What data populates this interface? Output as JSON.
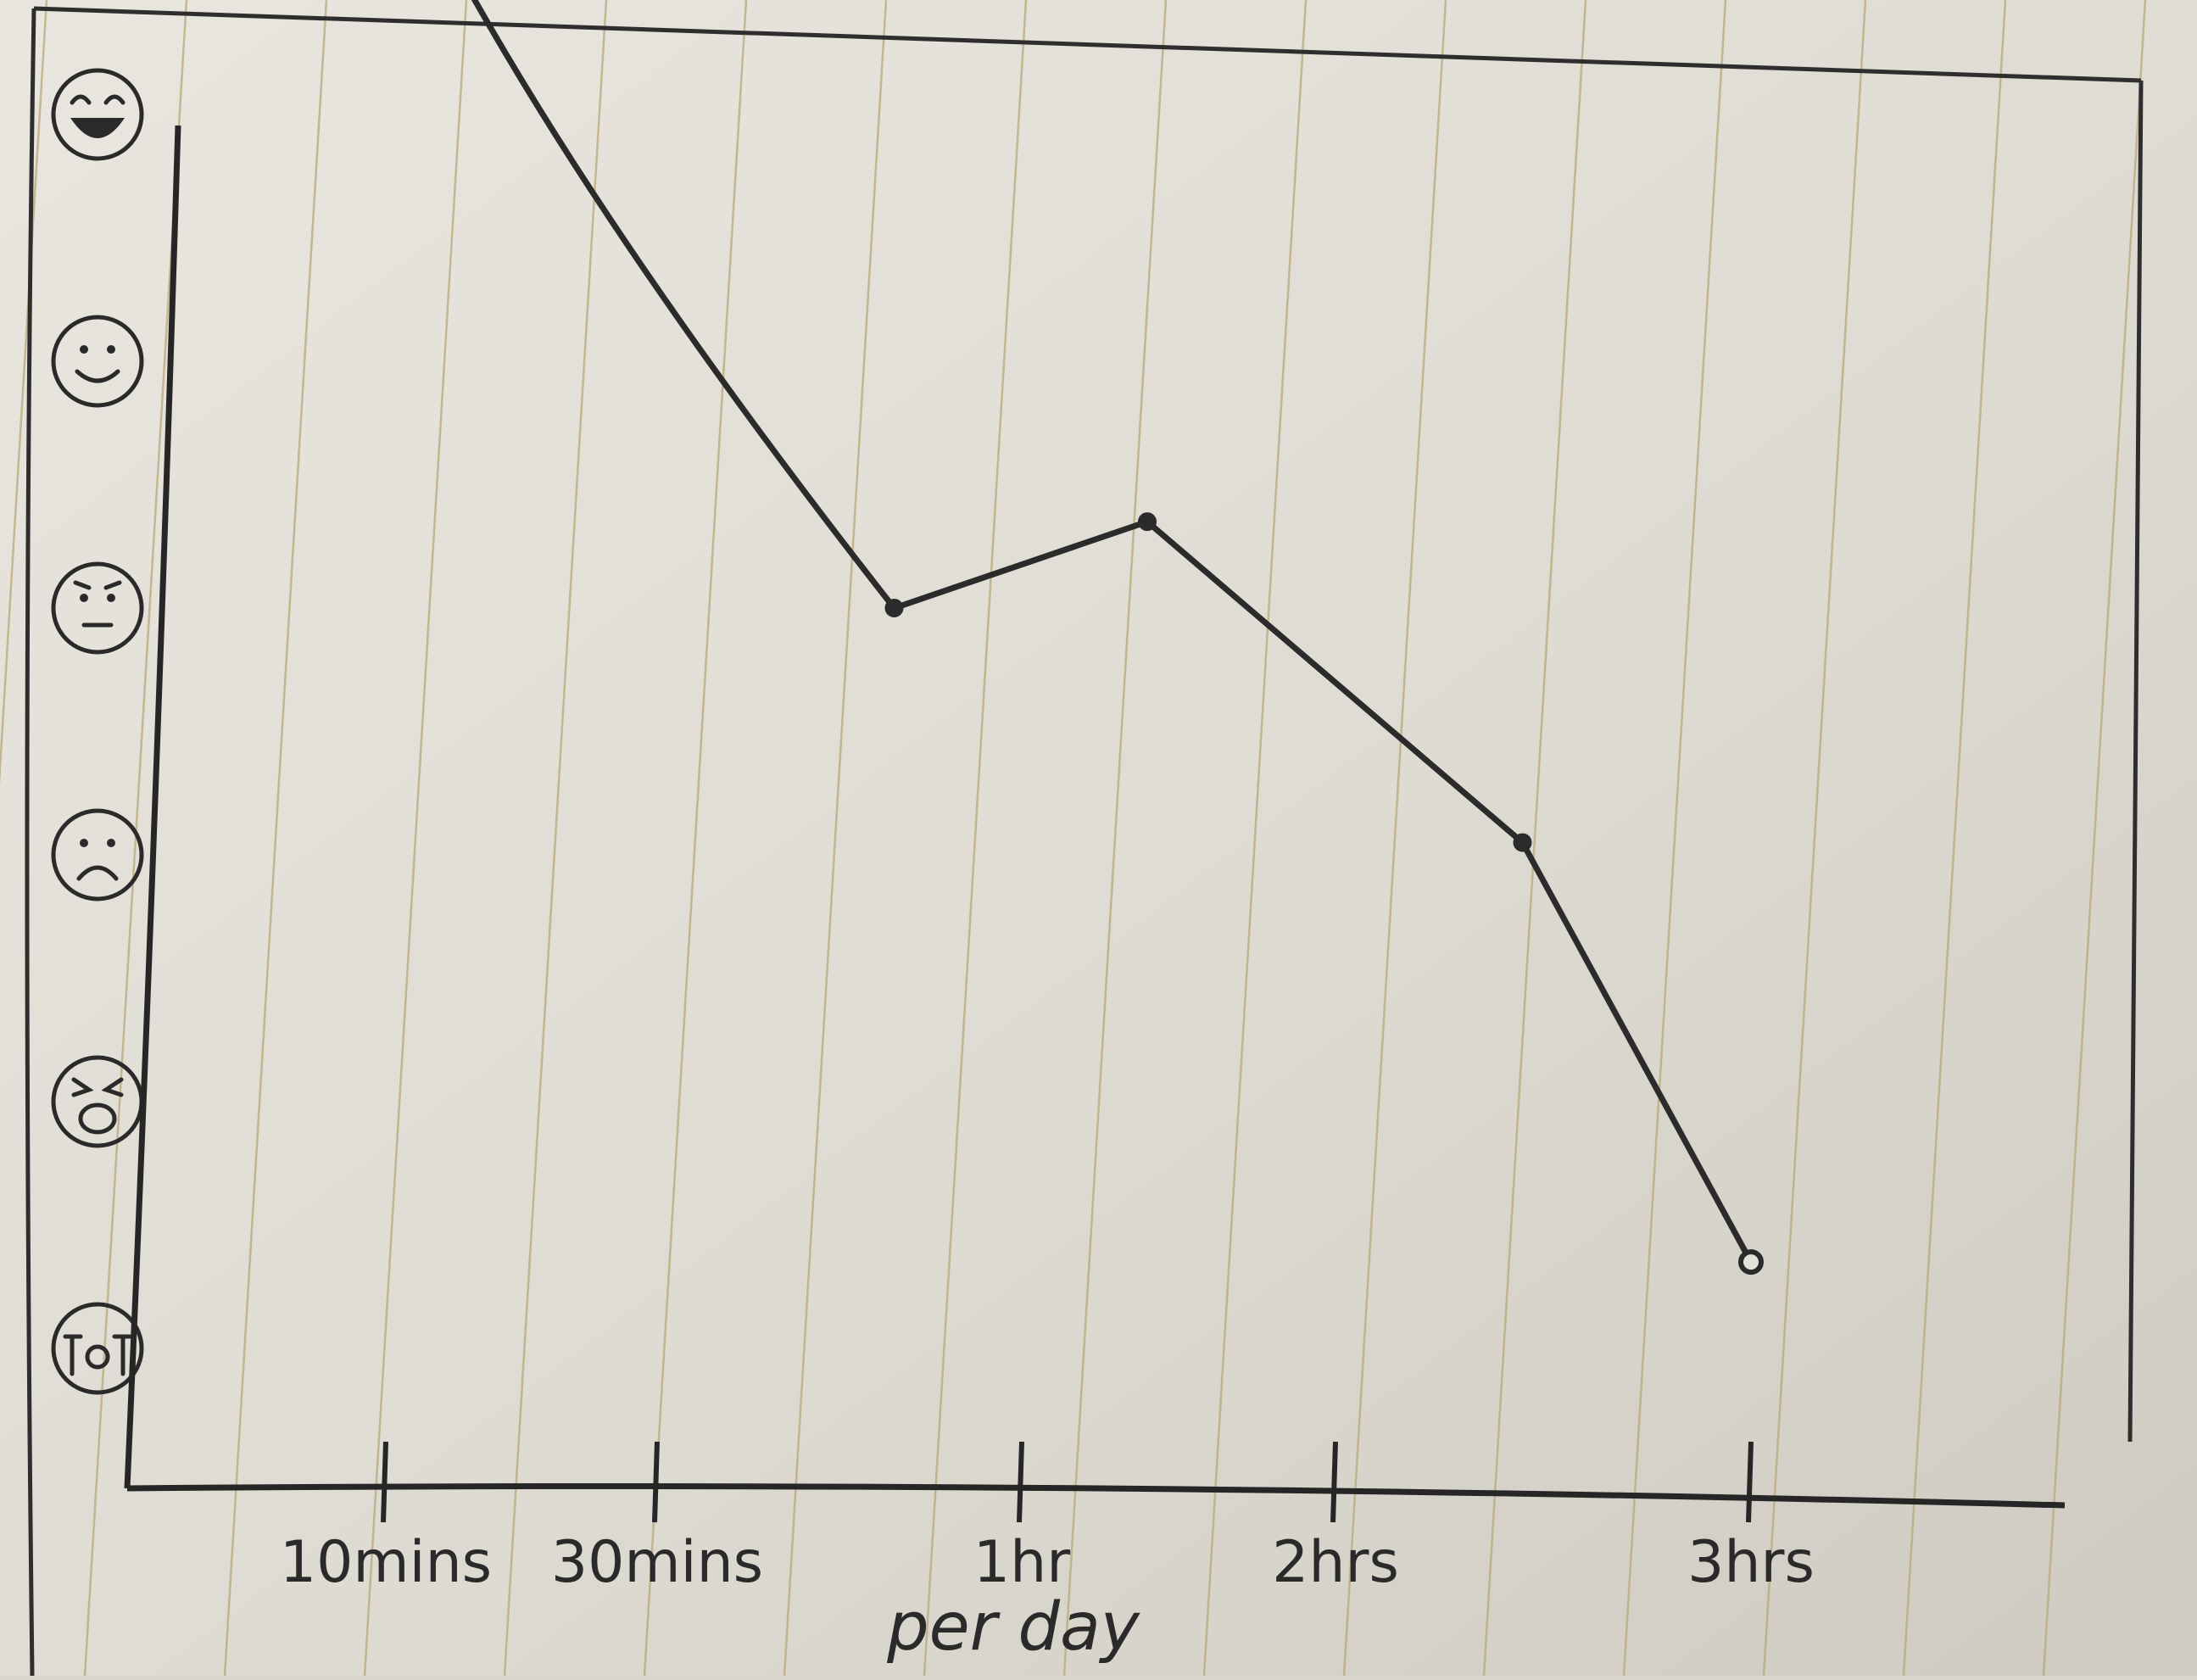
{
  "chart_data": {
    "type": "line",
    "x": [
      "10mins",
      "30mins",
      "1hr",
      "2hrs",
      "3hrs"
    ],
    "tick_labels": [
      "10mins",
      "30mins",
      "1hr",
      "2hrs",
      "3hrs"
    ],
    "xlabel": "per day",
    "y_levels": [
      "tears-of-joy",
      "smiling",
      "neutral",
      "sad",
      "crying",
      "devastated"
    ],
    "series": [
      {
        "points": [
          {
            "x_pos": 0.2,
            "y": 5.72
          },
          {
            "x_pos": 1.65,
            "y": 3.0
          },
          {
            "x_pos": 2.4,
            "y": 3.35
          },
          {
            "x_pos": 3.45,
            "y": 2.05
          },
          {
            "x_pos": 4.04,
            "y": 0.35
          }
        ]
      }
    ],
    "line_color": "#2b2b2b",
    "paper_color": "#e4e1da",
    "rule_color": "#b8a878",
    "grid": false
  }
}
